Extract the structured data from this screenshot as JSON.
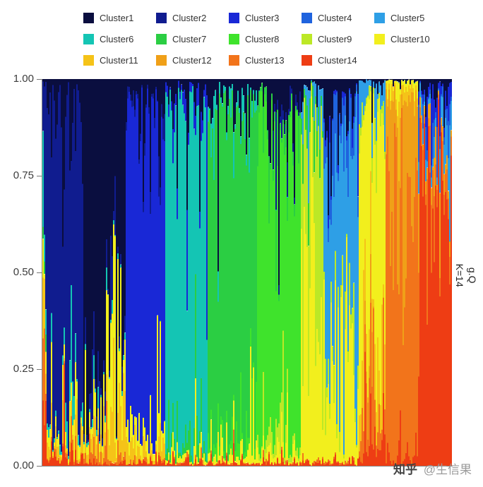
{
  "right_label": {
    "line1": "g.Q",
    "line2": "K=14"
  },
  "watermark": {
    "brand": "知乎",
    "handle": "@生信果"
  },
  "chart_data": {
    "type": "bar",
    "subtype": "stacked-admixture",
    "title": "",
    "xlabel": "",
    "ylabel": "",
    "right_strip_label": "g.Q K=14",
    "k": 14,
    "ylim": [
      0,
      1
    ],
    "y_ticks": [
      "1.00",
      "0.75",
      "0.50",
      "0.25",
      "0.00"
    ],
    "grid": "off",
    "legend_position": "top",
    "n_individuals": 290,
    "stack_order_top_to_bottom": [
      "Cluster1",
      "Cluster2",
      "Cluster3",
      "Cluster4",
      "Cluster5",
      "Cluster6",
      "Cluster7",
      "Cluster8",
      "Cluster9",
      "Cluster10",
      "Cluster11",
      "Cluster12",
      "Cluster13",
      "Cluster14"
    ],
    "clusters": [
      {
        "name": "Cluster1",
        "color": "#0A0E3F"
      },
      {
        "name": "Cluster2",
        "color": "#101C8F"
      },
      {
        "name": "Cluster3",
        "color": "#1928D6"
      },
      {
        "name": "Cluster4",
        "color": "#1F63DE"
      },
      {
        "name": "Cluster5",
        "color": "#2E9FE6"
      },
      {
        "name": "Cluster6",
        "color": "#14C5B4"
      },
      {
        "name": "Cluster7",
        "color": "#2BCE43"
      },
      {
        "name": "Cluster8",
        "color": "#3FE32C"
      },
      {
        "name": "Cluster9",
        "color": "#BCE826"
      },
      {
        "name": "Cluster10",
        "color": "#F2EF1D"
      },
      {
        "name": "Cluster11",
        "color": "#F5C318"
      },
      {
        "name": "Cluster12",
        "color": "#F0A018"
      },
      {
        "name": "Cluster13",
        "color": "#F2741B"
      },
      {
        "name": "Cluster14",
        "color": "#EE3D14"
      }
    ],
    "blocks": [
      {
        "start": 0.0,
        "end": 0.012,
        "mix": {
          "Cluster2": 0.4,
          "Cluster14": 0.18,
          "Cluster6": 0.12,
          "Cluster11": 0.1,
          "Cluster13": 0.08,
          "Cluster7": 0.06,
          "Cluster10": 0.06
        }
      },
      {
        "start": 0.012,
        "end": 0.1,
        "mix": {
          "Cluster2": 0.9,
          "Cluster1": 0.04,
          "Cluster11": 0.02,
          "Cluster6": 0.015,
          "Cluster10": 0.015,
          "Cluster14": 0.01
        }
      },
      {
        "start": 0.05,
        "end": 0.078,
        "mix": {
          "Cluster6": 0.28,
          "Cluster10": 0.06,
          "Cluster13": 0.04
        }
      },
      {
        "start": 0.1,
        "end": 0.205,
        "mix": {
          "Cluster1": 0.86,
          "Cluster2": 0.05,
          "Cluster10": 0.04,
          "Cluster11": 0.03,
          "Cluster6": 0.01,
          "Cluster13": 0.01
        }
      },
      {
        "start": 0.16,
        "end": 0.205,
        "mix": {
          "Cluster10": 0.2,
          "Cluster11": 0.08
        }
      },
      {
        "start": 0.205,
        "end": 0.3,
        "mix": {
          "Cluster3": 0.88,
          "Cluster1": 0.05,
          "Cluster10": 0.03,
          "Cluster2": 0.02,
          "Cluster11": 0.02
        }
      },
      {
        "start": 0.205,
        "end": 0.232,
        "mix": {
          "Cluster10": 0.08,
          "Cluster11": 0.05
        }
      },
      {
        "start": 0.3,
        "end": 0.405,
        "mix": {
          "Cluster6": 0.87,
          "Cluster1": 0.04,
          "Cluster3": 0.04,
          "Cluster7": 0.03,
          "Cluster10": 0.02
        }
      },
      {
        "start": 0.405,
        "end": 0.525,
        "mix": {
          "Cluster7": 0.88,
          "Cluster1": 0.04,
          "Cluster6": 0.03,
          "Cluster8": 0.03,
          "Cluster10": 0.02
        }
      },
      {
        "start": 0.525,
        "end": 0.63,
        "mix": {
          "Cluster8": 0.88,
          "Cluster1": 0.03,
          "Cluster7": 0.04,
          "Cluster9": 0.03,
          "Cluster10": 0.02
        }
      },
      {
        "start": 0.56,
        "end": 0.63,
        "mix": {
          "Cluster1": 0.06,
          "Cluster2": 0.03
        }
      },
      {
        "start": 0.63,
        "end": 0.69,
        "mix": {
          "Cluster9": 0.42,
          "Cluster10": 0.4,
          "Cluster7": 0.04,
          "Cluster5": 0.04,
          "Cluster1": 0.02
        }
      },
      {
        "start": 0.69,
        "end": 0.775,
        "mix": {
          "Cluster5": 0.55,
          "Cluster10": 0.22,
          "Cluster4": 0.08,
          "Cluster9": 0.04,
          "Cluster1": 0.04,
          "Cluster3": 0.02
        }
      },
      {
        "start": 0.69,
        "end": 0.715,
        "mix": {
          "Cluster1": 0.05
        }
      },
      {
        "start": 0.775,
        "end": 0.838,
        "mix": {
          "Cluster10": 0.62,
          "Cluster11": 0.12,
          "Cluster13": 0.06,
          "Cluster5": 0.05,
          "Cluster9": 0.04,
          "Cluster14": 0.03
        }
      },
      {
        "start": 0.788,
        "end": 0.812,
        "mix": {
          "Cluster13": 0.18,
          "Cluster14": 0.1,
          "Cluster12": 0.06
        }
      },
      {
        "start": 0.838,
        "end": 0.917,
        "mix": {
          "Cluster13": 0.6,
          "Cluster12": 0.3,
          "Cluster11": 0.04,
          "Cluster10": 0.02,
          "Cluster14": 0.02
        }
      },
      {
        "start": 0.917,
        "end": 1.001,
        "mix": {
          "Cluster14": 0.8,
          "Cluster13": 0.06,
          "Cluster5": 0.04,
          "Cluster3": 0.03,
          "Cluster12": 0.03,
          "Cluster4": 0.02,
          "Cluster1": 0.02
        }
      },
      {
        "start": 0.985,
        "end": 1.001,
        "mix": {
          "Cluster5": 0.1,
          "Cluster3": 0.06
        }
      },
      {
        "start": 0.0,
        "end": 0.66,
        "mix": {
          "Cluster1": 0.012
        }
      },
      {
        "start": 0.66,
        "end": 1.001,
        "mix": {
          "Cluster1": 0.005
        }
      },
      {
        "start": 0.0,
        "end": 1.001,
        "mix": {
          "Cluster14": 0.006,
          "Cluster13": 0.003
        }
      }
    ]
  }
}
